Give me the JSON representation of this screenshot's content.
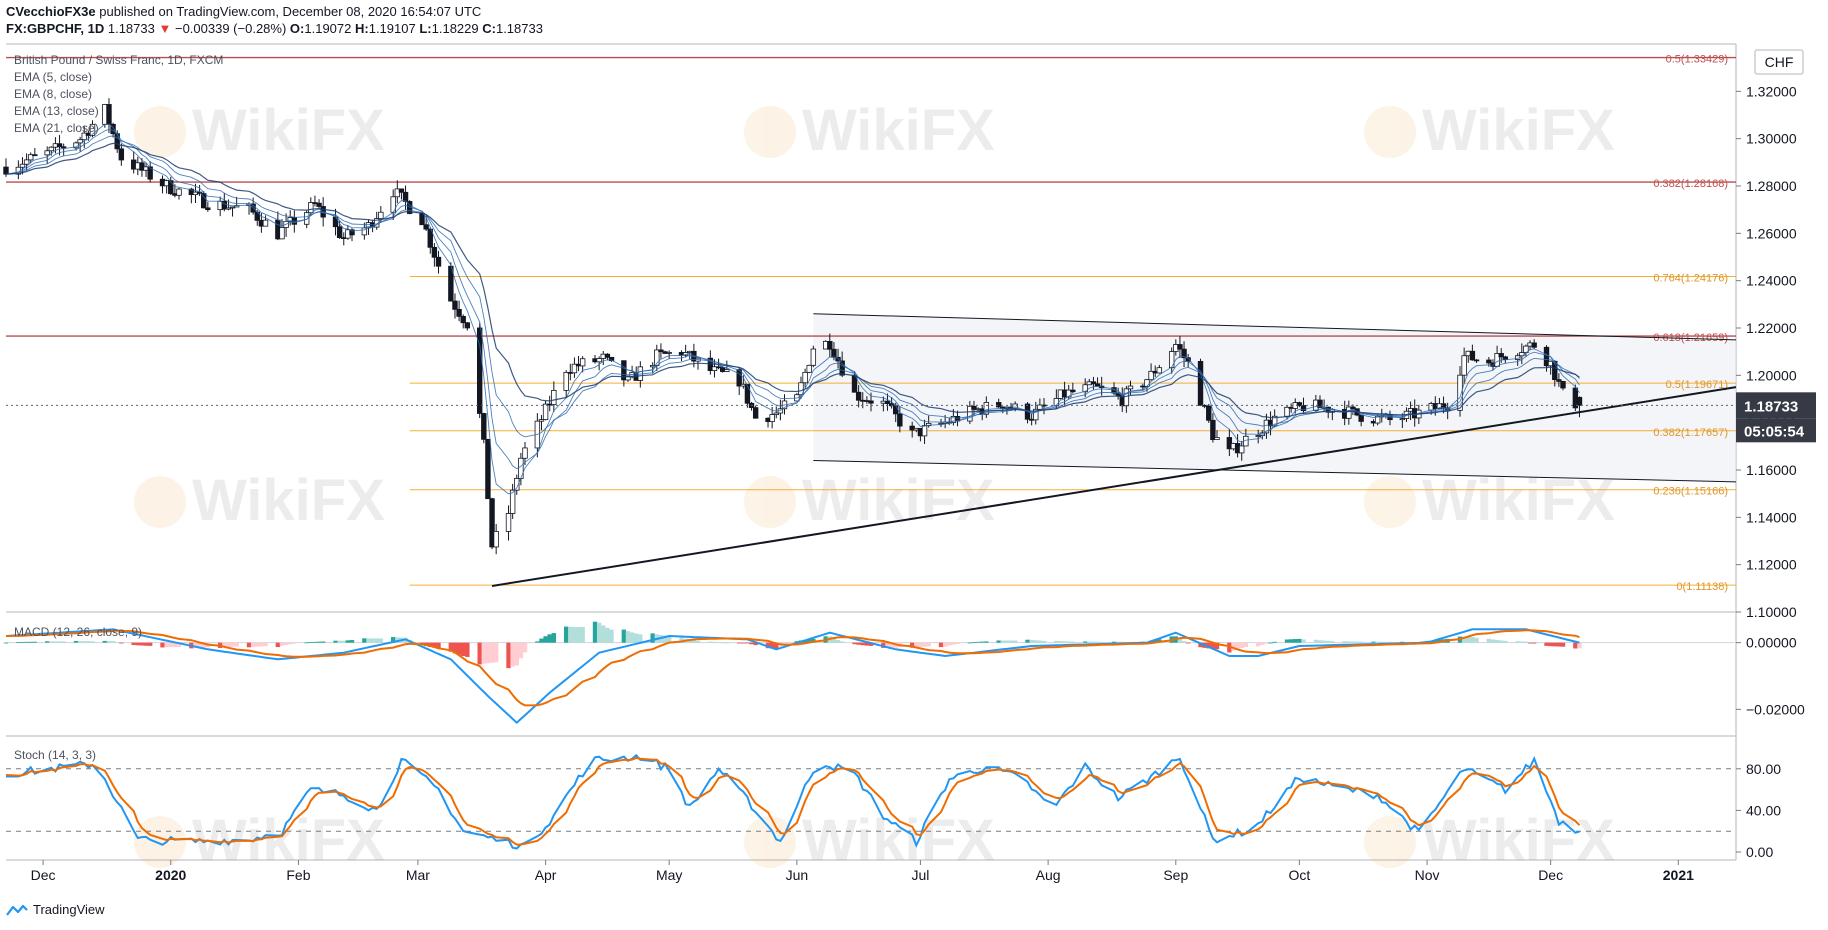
{
  "header": {
    "line1": {
      "author": "CVecchioFX3e",
      "published": "published on TradingView.com, December 08, 2020 16:54:07 UTC"
    },
    "line2": {
      "symbol": "FX:GBPCHF, 1D",
      "last": "1.18733",
      "change": "−0.00339 (−0.28%)",
      "o_label": "O:",
      "o_val": "1.19072",
      "h_label": "H:",
      "h_val": "1.19107",
      "l_label": "L:",
      "l_val": "1.18229",
      "c_label": "C:",
      "c_val": "1.18733"
    }
  },
  "legend": {
    "title": "British Pound / Swiss Franc, 1D, FXCM",
    "ema5": "EMA (5, close)",
    "ema8": "EMA (8, close)",
    "ema13": "EMA (13, close)",
    "ema21": "EMA (21, close)",
    "macd": "MACD (12, 26, close, 9)",
    "stoch": "Stoch (14, 3, 3)"
  },
  "price_axis": {
    "currency": "CHF",
    "last_price": "1.18733",
    "countdown": "05:05:54"
  },
  "footer": {
    "brand": "TradingView"
  },
  "watermark": "WikiFX",
  "colors": {
    "up": "#ffffff",
    "down": "#131722",
    "ema": "#2e6bb0",
    "ema_slow": "#1c3d6e",
    "fib": "#f5a623",
    "resistance": "#b23b3b",
    "macd": "#2196f3",
    "signal": "#ef6c00",
    "hist_up_strong": "#26a69a",
    "hist_up_weak": "#b2dfdb",
    "hist_down_strong": "#ef5350",
    "hist_down_weak": "#ffcdd2"
  },
  "chart_data": [
    {
      "type": "candlestick",
      "title": "British Pound / Swiss Franc, 1D, FXCM",
      "x_range": [
        "2019-11-22",
        "2021-01-15"
      ],
      "ylim": [
        1.1,
        1.34
      ],
      "y_ticks": [
        1.1,
        1.12,
        1.14,
        1.16,
        1.18,
        1.2,
        1.22,
        1.24,
        1.26,
        1.28,
        1.3,
        1.32
      ],
      "x_tick_labels": [
        "Dec",
        "2020",
        "Feb",
        "Mar",
        "Apr",
        "May",
        "Jun",
        "Jul",
        "Aug",
        "Sep",
        "Oct",
        "Nov",
        "Dec",
        "2021"
      ],
      "x_tick_dates": [
        "2019-12-01",
        "2020-01-01",
        "2020-02-01",
        "2020-03-01",
        "2020-04-01",
        "2020-05-01",
        "2020-06-01",
        "2020-07-01",
        "2020-08-01",
        "2020-09-01",
        "2020-10-01",
        "2020-11-01",
        "2020-12-01",
        "2021-01-01"
      ],
      "anchors": [
        [
          "2019-11-22",
          1.288
        ],
        [
          "2019-12-01",
          1.293
        ],
        [
          "2019-12-10",
          1.3
        ],
        [
          "2019-12-16",
          1.312
        ],
        [
          "2019-12-20",
          1.292
        ],
        [
          "2019-12-31",
          1.28
        ],
        [
          "2020-01-10",
          1.273
        ],
        [
          "2020-01-20",
          1.27
        ],
        [
          "2020-01-27",
          1.26
        ],
        [
          "2020-02-05",
          1.272
        ],
        [
          "2020-02-12",
          1.258
        ],
        [
          "2020-02-18",
          1.263
        ],
        [
          "2020-02-24",
          1.278
        ],
        [
          "2020-03-02",
          1.266
        ],
        [
          "2020-03-09",
          1.232
        ],
        [
          "2020-03-13",
          1.222
        ],
        [
          "2020-03-17",
          1.17
        ],
        [
          "2020-03-19",
          1.128
        ],
        [
          "2020-03-23",
          1.142
        ],
        [
          "2020-03-26",
          1.165
        ],
        [
          "2020-04-01",
          1.185
        ],
        [
          "2020-04-06",
          1.203
        ],
        [
          "2020-04-15",
          1.207
        ],
        [
          "2020-04-21",
          1.197
        ],
        [
          "2020-04-28",
          1.208
        ],
        [
          "2020-05-04",
          1.21
        ],
        [
          "2020-05-11",
          1.202
        ],
        [
          "2020-05-18",
          1.198
        ],
        [
          "2020-05-22",
          1.182
        ],
        [
          "2020-05-27",
          1.184
        ],
        [
          "2020-06-01",
          1.19
        ],
        [
          "2020-06-05",
          1.212
        ],
        [
          "2020-06-09",
          1.214
        ],
        [
          "2020-06-15",
          1.192
        ],
        [
          "2020-06-22",
          1.188
        ],
        [
          "2020-06-29",
          1.175
        ],
        [
          "2020-07-07",
          1.18
        ],
        [
          "2020-07-14",
          1.185
        ],
        [
          "2020-07-21",
          1.188
        ],
        [
          "2020-07-28",
          1.183
        ],
        [
          "2020-08-05",
          1.192
        ],
        [
          "2020-08-12",
          1.195
        ],
        [
          "2020-08-19",
          1.19
        ],
        [
          "2020-08-26",
          1.2
        ],
        [
          "2020-09-01",
          1.213
        ],
        [
          "2020-09-04",
          1.205
        ],
        [
          "2020-09-10",
          1.175
        ],
        [
          "2020-09-14",
          1.167
        ],
        [
          "2020-09-18",
          1.173
        ],
        [
          "2020-09-25",
          1.182
        ],
        [
          "2020-10-02",
          1.187
        ],
        [
          "2020-10-09",
          1.186
        ],
        [
          "2020-10-16",
          1.183
        ],
        [
          "2020-10-23",
          1.181
        ],
        [
          "2020-10-30",
          1.184
        ],
        [
          "2020-11-06",
          1.188
        ],
        [
          "2020-11-10",
          1.208
        ],
        [
          "2020-11-16",
          1.206
        ],
        [
          "2020-11-23",
          1.211
        ],
        [
          "2020-11-27",
          1.213
        ],
        [
          "2020-12-01",
          1.205
        ],
        [
          "2020-12-04",
          1.192
        ],
        [
          "2020-12-08",
          1.187
        ]
      ],
      "last": {
        "open": 1.19072,
        "high": 1.19107,
        "low": 1.18229,
        "close": 1.18733
      },
      "horizontal_levels": [
        {
          "price": 1.33429,
          "label": "0.5(1.33429)",
          "kind": "resistance",
          "from": "2019-11-22"
        },
        {
          "price": 1.28168,
          "label": "0.382(1.28168)",
          "kind": "resistance",
          "from": "2019-11-22"
        },
        {
          "price": 1.24176,
          "label": "0.764(1.24176)",
          "kind": "fib",
          "from": "2020-02-28"
        },
        {
          "price": 1.21659,
          "label": "0.618(1.21659)",
          "kind": "resistance",
          "from": "2019-11-22"
        },
        {
          "price": 1.19671,
          "label": "0.5(1.19671)",
          "kind": "fib",
          "from": "2020-02-28"
        },
        {
          "price": 1.17657,
          "label": "0.382(1.17657)",
          "kind": "fib",
          "from": "2020-02-28"
        },
        {
          "price": 1.15166,
          "label": "0.236(1.15166)",
          "kind": "fib",
          "from": "2020-02-28"
        },
        {
          "price": 1.11138,
          "label": "0(1.11138)",
          "kind": "fib",
          "from": "2020-02-28"
        }
      ],
      "trendlines": [
        {
          "from": [
            "2020-03-19",
            1.111
          ],
          "to": [
            "2021-01-15",
            1.195
          ],
          "width": 2
        },
        {
          "from": [
            "2020-06-05",
            1.226
          ],
          "to": [
            "2021-01-15",
            1.215
          ],
          "width": 1
        },
        {
          "from": [
            "2020-06-05",
            1.164
          ],
          "to": [
            "2021-01-15",
            1.155
          ],
          "width": 1
        }
      ],
      "channel": {
        "from": "2020-06-05",
        "to": "2021-01-15",
        "top": [
          1.226,
          1.215
        ],
        "bottom": [
          1.164,
          1.155
        ]
      }
    },
    {
      "type": "line",
      "title": "MACD (12, 26, close, 9)",
      "ylim": [
        -0.028,
        0.008
      ],
      "y_ticks": [
        0.0,
        -0.02
      ],
      "y_tick_labels": [
        "0.00000",
        "−0.02000"
      ],
      "anchors": [
        [
          "2019-11-22",
          0.002
        ],
        [
          "2019-12-18",
          0.004
        ],
        [
          "2020-01-10",
          -0.002
        ],
        [
          "2020-01-27",
          -0.005
        ],
        [
          "2020-02-12",
          -0.003
        ],
        [
          "2020-02-27",
          0.001
        ],
        [
          "2020-03-09",
          -0.005
        ],
        [
          "2020-03-18",
          -0.016
        ],
        [
          "2020-03-25",
          -0.024
        ],
        [
          "2020-04-02",
          -0.015
        ],
        [
          "2020-04-14",
          -0.003
        ],
        [
          "2020-05-01",
          0.002
        ],
        [
          "2020-05-20",
          0.001
        ],
        [
          "2020-05-27",
          -0.002
        ],
        [
          "2020-06-09",
          0.003
        ],
        [
          "2020-06-25",
          -0.002
        ],
        [
          "2020-07-07",
          -0.004
        ],
        [
          "2020-07-28",
          -0.001
        ],
        [
          "2020-08-25",
          0.0
        ],
        [
          "2020-09-01",
          0.003
        ],
        [
          "2020-09-14",
          -0.004
        ],
        [
          "2020-09-21",
          -0.004
        ],
        [
          "2020-10-01",
          -0.001
        ],
        [
          "2020-11-01",
          0.0
        ],
        [
          "2020-11-12",
          0.004
        ],
        [
          "2020-11-25",
          0.004
        ],
        [
          "2020-12-08",
          0.0
        ]
      ]
    },
    {
      "type": "line",
      "title": "Stoch (14, 3, 3)",
      "ylim": [
        0,
        100
      ],
      "y_ticks": [
        0,
        40,
        80
      ],
      "y_tick_labels": [
        "0.00",
        "40.00",
        "80.00"
      ],
      "bands": [
        20,
        80
      ],
      "anchors": [
        [
          "2019-11-22",
          75
        ],
        [
          "2019-12-14",
          85
        ],
        [
          "2019-12-24",
          12
        ],
        [
          "2020-01-05",
          10
        ],
        [
          "2020-01-20",
          12
        ],
        [
          "2020-01-28",
          20
        ],
        [
          "2020-02-04",
          60
        ],
        [
          "2020-02-12",
          55
        ],
        [
          "2020-02-20",
          40
        ],
        [
          "2020-02-26",
          88
        ],
        [
          "2020-03-06",
          60
        ],
        [
          "2020-03-12",
          20
        ],
        [
          "2020-03-20",
          12
        ],
        [
          "2020-03-27",
          5
        ],
        [
          "2020-04-02",
          30
        ],
        [
          "2020-04-12",
          88
        ],
        [
          "2020-04-24",
          92
        ],
        [
          "2020-05-01",
          80
        ],
        [
          "2020-05-06",
          42
        ],
        [
          "2020-05-13",
          80
        ],
        [
          "2020-05-20",
          50
        ],
        [
          "2020-05-28",
          10
        ],
        [
          "2020-06-06",
          88
        ],
        [
          "2020-06-15",
          75
        ],
        [
          "2020-06-22",
          35
        ],
        [
          "2020-06-30",
          10
        ],
        [
          "2020-07-08",
          70
        ],
        [
          "2020-07-17",
          82
        ],
        [
          "2020-07-26",
          70
        ],
        [
          "2020-08-02",
          40
        ],
        [
          "2020-08-10",
          82
        ],
        [
          "2020-08-18",
          52
        ],
        [
          "2020-08-26",
          72
        ],
        [
          "2020-09-02",
          92
        ],
        [
          "2020-09-10",
          12
        ],
        [
          "2020-09-20",
          22
        ],
        [
          "2020-10-01",
          72
        ],
        [
          "2020-10-10",
          62
        ],
        [
          "2020-10-20",
          55
        ],
        [
          "2020-10-30",
          18
        ],
        [
          "2020-11-10",
          80
        ],
        [
          "2020-11-20",
          60
        ],
        [
          "2020-11-27",
          88
        ],
        [
          "2020-12-03",
          30
        ],
        [
          "2020-12-08",
          20
        ]
      ]
    }
  ]
}
